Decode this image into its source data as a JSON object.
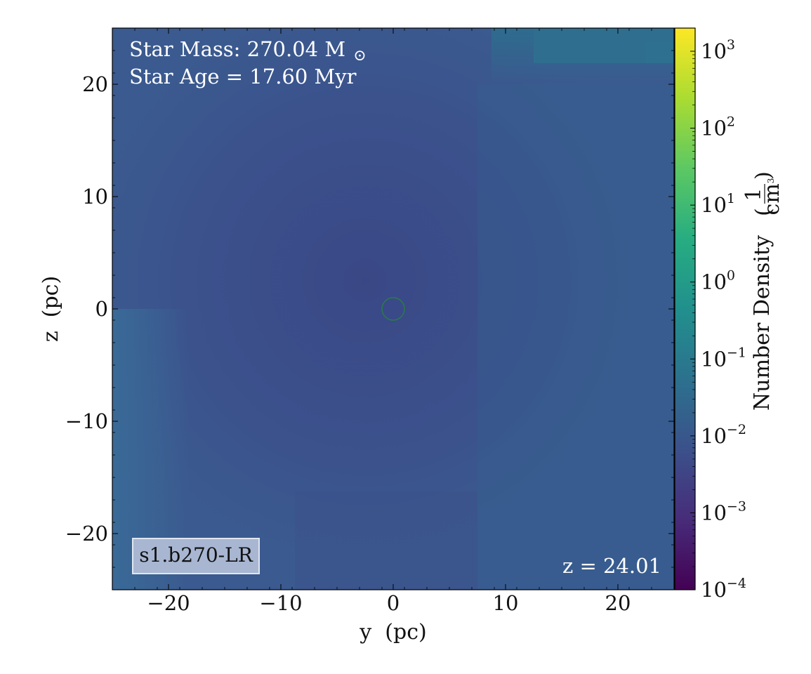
{
  "chart_data": {
    "type": "heatmap",
    "title": "",
    "xlabel": "y  (pc)",
    "ylabel": "z  (pc)",
    "xlim": [
      -25,
      25
    ],
    "ylim": [
      -25,
      25
    ],
    "xticks": [
      -20,
      -10,
      0,
      10,
      20
    ],
    "yticks": [
      -20,
      -10,
      0,
      10,
      20
    ],
    "xtick_labels": [
      "−20",
      "−10",
      "0",
      "10",
      "20"
    ],
    "ytick_labels": [
      "−20",
      "−10",
      "0",
      "10",
      "20"
    ],
    "grid": false,
    "colorbar": {
      "label": "Number Density",
      "unit_numerator": "1",
      "unit_denominator": "cm",
      "unit_exponent": "3",
      "scale": "log",
      "range": [
        0.0001,
        2000
      ],
      "colormap": "viridis",
      "tick_values": [
        0.0001,
        0.001,
        0.01,
        0.1,
        1,
        10,
        100,
        1000
      ],
      "tick_labels": [
        {
          "base": "10",
          "exp": "−4"
        },
        {
          "base": "10",
          "exp": "−3"
        },
        {
          "base": "10",
          "exp": "−2"
        },
        {
          "base": "10",
          "exp": "−1"
        },
        {
          "base": "10",
          "exp": "0"
        },
        {
          "base": "10",
          "exp": "1"
        },
        {
          "base": "10",
          "exp": "2"
        },
        {
          "base": "10",
          "exp": "3"
        }
      ]
    },
    "field_description": "Projected number density; nearly uniform ~1e-2 cm^-3 across field, slightly lower (~6e-3) toward center-left, higher (~2e-2) near top-right corner and left edge.",
    "star_marker": {
      "y": 0,
      "z": 0,
      "radius_pc": 1.0,
      "shape": "circle"
    },
    "annotations": {
      "star_mass_label": "Star Mass: 270.04 M",
      "star_mass_symbol": "⊙",
      "star_age": "Star Age = 17.60 Myr",
      "redshift": "z = 24.01",
      "simulation_tag": "s1.b270-LR"
    }
  },
  "colors": {
    "background_field": "#3b5a8f",
    "center_region": "#3a4c8a",
    "top_right_region": "#2f6b8e",
    "left_edge_region": "#396796",
    "star_marker": "#2a7a4a",
    "tag_box_fill": "#a8b6d2",
    "tag_box_border": "#e0e6f0"
  }
}
